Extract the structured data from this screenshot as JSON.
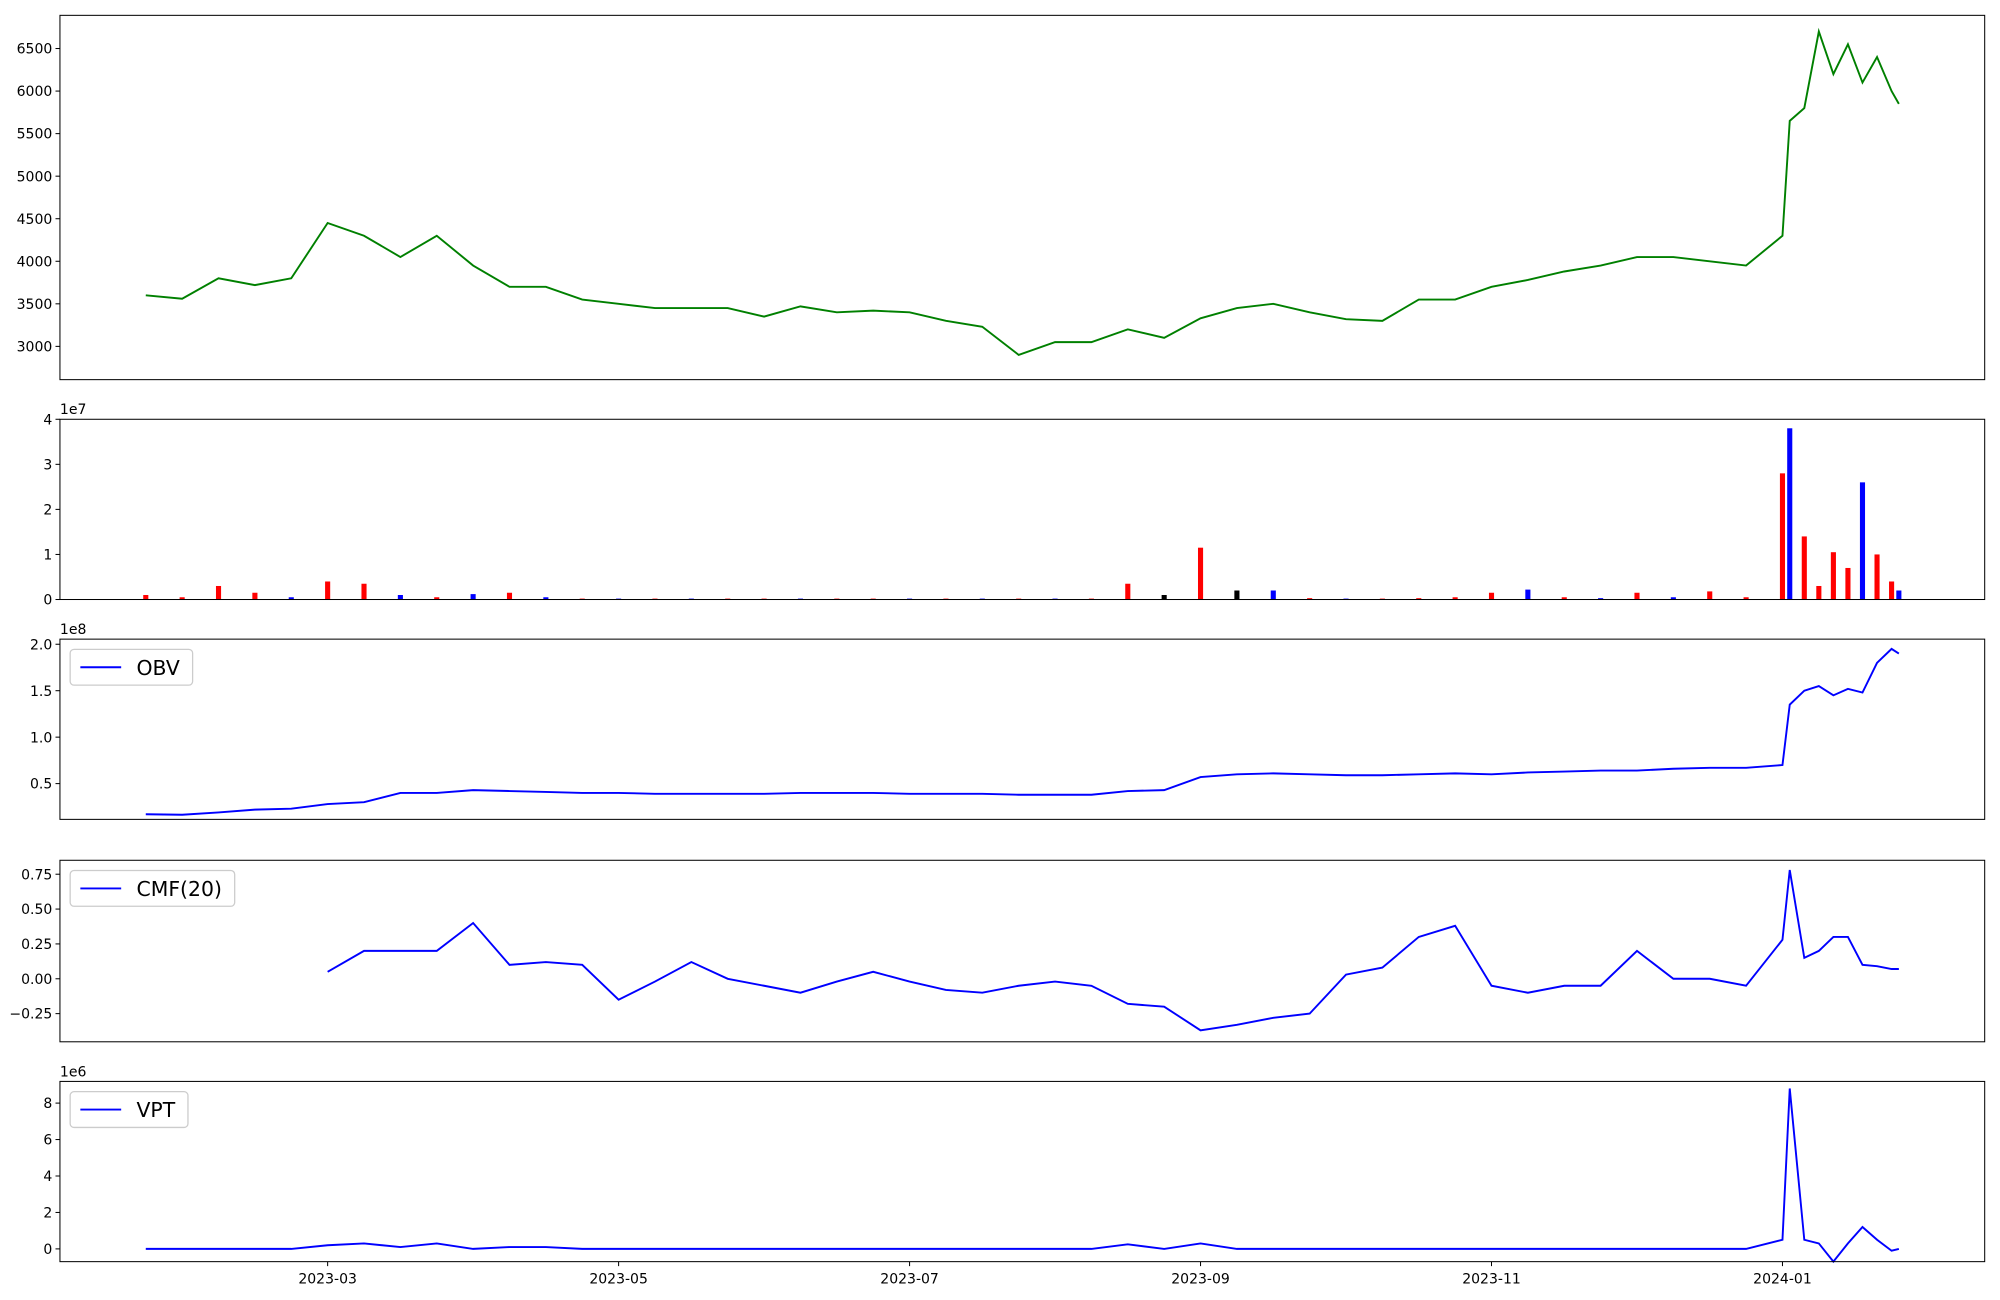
{
  "chart_data": [
    {
      "type": "line",
      "color": "#008000",
      "x": [
        0.75,
        1.0,
        1.25,
        1.5,
        1.75,
        2.0,
        2.25,
        2.5,
        2.75,
        3.0,
        3.25,
        3.5,
        3.75,
        4.0,
        4.25,
        4.5,
        4.75,
        5.0,
        5.25,
        5.5,
        5.75,
        6.0,
        6.25,
        6.5,
        6.75,
        7.0,
        7.25,
        7.5,
        7.75,
        8.0,
        8.25,
        8.5,
        8.75,
        9.0,
        9.25,
        9.5,
        9.75,
        10.0,
        10.25,
        10.5,
        10.75,
        11.0,
        11.25,
        11.5,
        11.75,
        12.0,
        12.05,
        12.15,
        12.25,
        12.35,
        12.45,
        12.55,
        12.65,
        12.75,
        12.8
      ],
      "values": [
        3600,
        3560,
        3800,
        3720,
        3800,
        4450,
        4300,
        4050,
        4300,
        3950,
        3700,
        3700,
        3550,
        3500,
        3450,
        3450,
        3450,
        3350,
        3470,
        3400,
        3420,
        3400,
        3300,
        3230,
        2900,
        3050,
        3050,
        3200,
        3100,
        3330,
        3450,
        3500,
        3400,
        3320,
        3300,
        3550,
        3550,
        3700,
        3780,
        3880,
        3950,
        4050,
        4050,
        4000,
        3950,
        4300,
        5650,
        5800,
        6700,
        6200,
        6550,
        6100,
        6400,
        6000,
        5850
      ],
      "xlim": [
        0.16,
        13.39
      ],
      "ylim": [
        2609,
        6890
      ],
      "yticks": [
        3000,
        3500,
        4000,
        4500,
        5000,
        5500,
        6000,
        6500
      ]
    },
    {
      "type": "bar",
      "y_offset_label": "1e7",
      "x": [
        0.75,
        1.0,
        1.25,
        1.5,
        1.75,
        2.0,
        2.25,
        2.5,
        2.75,
        3.0,
        3.25,
        3.5,
        3.75,
        4.0,
        4.25,
        4.5,
        4.75,
        5.0,
        5.25,
        5.5,
        5.75,
        6.0,
        6.25,
        6.5,
        6.75,
        7.0,
        7.25,
        7.5,
        7.75,
        8.0,
        8.25,
        8.5,
        8.75,
        9.0,
        9.25,
        9.5,
        9.75,
        10.0,
        10.25,
        10.5,
        10.75,
        11.0,
        11.25,
        11.5,
        11.75,
        12.0,
        12.05,
        12.15,
        12.25,
        12.35,
        12.45,
        12.55,
        12.65,
        12.75,
        12.8
      ],
      "values": [
        1000000,
        500000,
        3000000,
        1500000,
        500000,
        4000000,
        3500000,
        1000000,
        500000,
        1200000,
        1500000,
        500000,
        200000,
        200000,
        200000,
        200000,
        200000,
        200000,
        200000,
        200000,
        200000,
        200000,
        200000,
        200000,
        200000,
        200000,
        200000,
        3500000,
        1000000,
        11500000,
        2000000,
        2000000,
        300000,
        200000,
        200000,
        300000,
        500000,
        1500000,
        2200000,
        500000,
        300000,
        1500000,
        500000,
        1800000,
        500000,
        28000000,
        38000000,
        14000000,
        3000000,
        10500000,
        7000000,
        26000000,
        10000000,
        4000000,
        2000000
      ],
      "colors": [
        "red",
        "red",
        "red",
        "red",
        "blue",
        "red",
        "red",
        "blue",
        "red",
        "blue",
        "red",
        "blue",
        "red",
        "blue",
        "red",
        "blue",
        "red",
        "red",
        "blue",
        "red",
        "red",
        "blue",
        "red",
        "blue",
        "red",
        "blue",
        "red",
        "red",
        "black",
        "red",
        "black",
        "blue",
        "red",
        "blue",
        "red",
        "red",
        "red",
        "red",
        "blue",
        "red",
        "blue",
        "red",
        "blue",
        "red",
        "red",
        "red",
        "blue",
        "red",
        "red",
        "red",
        "red",
        "blue",
        "red",
        "red",
        "blue"
      ],
      "xlim": [
        0.16,
        13.39
      ],
      "ylim": [
        0,
        40000000
      ],
      "yticks": [
        0,
        {
          "value": 10000000,
          "label": "1"
        },
        {
          "value": 20000000,
          "label": "2"
        },
        {
          "value": 30000000,
          "label": "3"
        },
        {
          "value": 40000000,
          "label": "4"
        }
      ]
    },
    {
      "type": "line",
      "y_offset_label": "1e8",
      "legend": "upper left",
      "x": [
        0.75,
        1.0,
        1.25,
        1.5,
        1.75,
        2.0,
        2.25,
        2.5,
        2.75,
        3.0,
        3.25,
        3.5,
        3.75,
        4.0,
        4.25,
        4.5,
        4.75,
        5.0,
        5.25,
        5.5,
        5.75,
        6.0,
        6.25,
        6.5,
        6.75,
        7.0,
        7.25,
        7.5,
        7.75,
        8.0,
        8.25,
        8.5,
        8.75,
        9.0,
        9.25,
        9.5,
        9.75,
        10.0,
        10.25,
        10.5,
        10.75,
        11.0,
        11.25,
        11.5,
        11.75,
        12.0,
        12.05,
        12.15,
        12.25,
        12.35,
        12.45,
        12.55,
        12.65,
        12.75,
        12.8
      ],
      "series": [
        {
          "name": "OBV",
          "color": "#0000ff",
          "values": [
            17000000,
            16500000,
            19000000,
            22000000,
            23000000,
            28000000,
            30000000,
            40000000,
            40000000,
            43000000,
            42000000,
            41000000,
            40000000,
            40000000,
            39000000,
            39000000,
            39000000,
            39000000,
            40000000,
            40000000,
            40000000,
            39000000,
            39000000,
            39000000,
            38000000,
            38000000,
            38000000,
            42000000,
            43000000,
            57000000,
            60000000,
            61000000,
            60000000,
            59000000,
            59000000,
            60000000,
            61000000,
            60000000,
            62000000,
            63000000,
            64000000,
            64000000,
            66000000,
            67000000,
            67000000,
            70000000,
            135000000,
            150000000,
            155000000,
            145000000,
            152000000,
            148000000,
            180000000,
            195000000,
            190000000
          ]
        }
      ],
      "xlim": [
        0.16,
        13.39
      ],
      "ylim": [
        11500000,
        205500000
      ],
      "yticks": [
        {
          "value": 50000000,
          "label": "0.5"
        },
        {
          "value": 100000000,
          "label": "1.0"
        },
        {
          "value": 150000000,
          "label": "1.5"
        },
        {
          "value": 200000000,
          "label": "2.0"
        }
      ]
    },
    {
      "type": "line",
      "legend": "upper left",
      "x": [
        0.75,
        1.0,
        1.25,
        1.5,
        1.75,
        2.0,
        2.25,
        2.5,
        2.75,
        3.0,
        3.25,
        3.5,
        3.75,
        4.0,
        4.25,
        4.5,
        4.75,
        5.0,
        5.25,
        5.5,
        5.75,
        6.0,
        6.25,
        6.5,
        6.75,
        7.0,
        7.25,
        7.5,
        7.75,
        8.0,
        8.25,
        8.5,
        8.75,
        9.0,
        9.25,
        9.5,
        9.75,
        10.0,
        10.25,
        10.5,
        10.75,
        11.0,
        11.25,
        11.5,
        11.75,
        12.0,
        12.05,
        12.15,
        12.25,
        12.35,
        12.45,
        12.55,
        12.65,
        12.75,
        12.8
      ],
      "series": [
        {
          "name": "CMF(20)",
          "color": "#0000ff",
          "values": [
            null,
            null,
            null,
            null,
            null,
            0.05,
            0.2,
            0.2,
            0.2,
            0.4,
            0.1,
            0.12,
            0.1,
            -0.15,
            -0.02,
            0.12,
            0.0,
            -0.05,
            -0.1,
            -0.02,
            0.05,
            -0.02,
            -0.08,
            -0.1,
            -0.05,
            -0.02,
            -0.05,
            -0.18,
            -0.2,
            -0.37,
            -0.33,
            -0.28,
            -0.25,
            0.03,
            0.08,
            0.3,
            0.38,
            -0.05,
            -0.1,
            -0.05,
            -0.05,
            0.2,
            0.0,
            0.0,
            -0.05,
            0.28,
            0.78,
            0.15,
            0.2,
            0.3,
            0.3,
            0.1,
            0.09,
            0.07,
            0.07
          ]
        }
      ],
      "xlim": [
        0.16,
        13.39
      ],
      "ylim": [
        -0.452,
        0.85
      ],
      "yticks": [
        {
          "value": -0.25,
          "label": "−0.25"
        },
        {
          "value": 0,
          "label": "0.00"
        },
        {
          "value": 0.25,
          "label": "0.25"
        },
        {
          "value": 0.5,
          "label": "0.50"
        },
        {
          "value": 0.75,
          "label": "0.75"
        }
      ]
    },
    {
      "type": "line",
      "y_offset_label": "1e6",
      "legend": "upper left",
      "x": [
        0.75,
        1.0,
        1.25,
        1.5,
        1.75,
        2.0,
        2.25,
        2.5,
        2.75,
        3.0,
        3.25,
        3.5,
        3.75,
        4.0,
        4.25,
        4.5,
        4.75,
        5.0,
        5.25,
        5.5,
        5.75,
        6.0,
        6.25,
        6.5,
        6.75,
        7.0,
        7.25,
        7.5,
        7.75,
        8.0,
        8.25,
        8.5,
        8.75,
        9.0,
        9.25,
        9.5,
        9.75,
        10.0,
        10.25,
        10.5,
        10.75,
        11.0,
        11.25,
        11.5,
        11.75,
        12.0,
        12.05,
        12.15,
        12.25,
        12.35,
        12.45,
        12.55,
        12.65,
        12.75,
        12.8
      ],
      "series": [
        {
          "name": "VPT",
          "color": "#0000ff",
          "values": [
            0,
            0,
            0,
            0,
            0,
            200000,
            300000,
            100000,
            300000,
            0,
            100000,
            100000,
            0,
            0,
            0,
            0,
            0,
            0,
            0,
            0,
            0,
            0,
            0,
            0,
            0,
            0,
            0,
            250000,
            0,
            300000,
            0,
            0,
            0,
            0,
            0,
            0,
            0,
            0,
            0,
            0,
            0,
            0,
            0,
            0,
            0,
            500000,
            8800000,
            500000,
            300000,
            -700000,
            300000,
            1200000,
            500000,
            -100000,
            0
          ]
        }
      ],
      "xlim": [
        0.16,
        13.39
      ],
      "ylim": [
        -700000,
        9190000
      ],
      "yticks": [
        0,
        {
          "value": 2000000,
          "label": "2"
        },
        {
          "value": 4000000,
          "label": "4"
        },
        {
          "value": 6000000,
          "label": "6"
        },
        {
          "value": 8000000,
          "label": "8"
        }
      ],
      "xticks": [
        {
          "value": 2,
          "label": "2023-03"
        },
        {
          "value": 4,
          "label": "2023-05"
        },
        {
          "value": 6,
          "label": "2023-07"
        },
        {
          "value": 8,
          "label": "2023-09"
        },
        {
          "value": 10,
          "label": "2023-11"
        },
        {
          "value": 12,
          "label": "2024-01"
        }
      ]
    }
  ]
}
